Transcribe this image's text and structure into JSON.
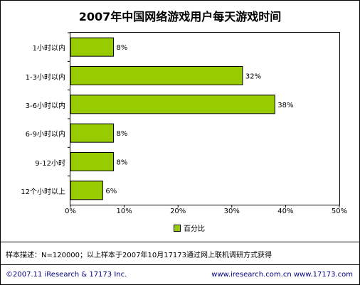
{
  "chart_data": {
    "type": "bar",
    "orientation": "horizontal",
    "title": "2007年中国网络游戏用户每天游戏时间",
    "categories": [
      "1小时以内",
      "1-3小时以内",
      "3-6小时以内",
      "6-9小时以内",
      "9-12小时",
      "12个小时以上"
    ],
    "values": [
      8,
      32,
      38,
      8,
      8,
      6
    ],
    "value_labels": [
      "8%",
      "32%",
      "38%",
      "8%",
      "8%",
      "6%"
    ],
    "series": [
      {
        "name": "百分比",
        "values": [
          8,
          32,
          38,
          8,
          8,
          6
        ]
      }
    ],
    "xlim": [
      0,
      50
    ],
    "x_ticks": [
      "0%",
      "10%",
      "20%",
      "30%",
      "40%",
      "50%"
    ],
    "legend_position": "bottom",
    "grid": false,
    "colors": {
      "bar": "#99cc00",
      "bar_border": "#000000"
    }
  },
  "note": "样本描述：N=120000；以上样本于2007年10月17173通过网上联机调研方式获得",
  "footer": {
    "copyright": "©2007.11 iResearch & 17173 Inc.",
    "sites": "www.iresearch.com.cn  www.17173.com"
  }
}
